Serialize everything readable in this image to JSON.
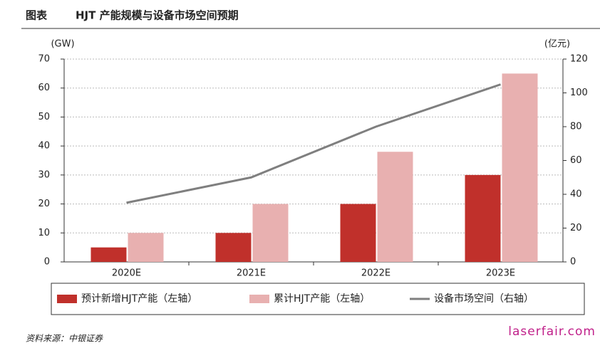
{
  "header": {
    "label": "图表",
    "title": "HJT 产能规模与设备市场空间预期"
  },
  "chart_data": {
    "type": "bar-line",
    "y_axis_label": "(GW)",
    "y2_axis_label": "(亿元)",
    "categories": [
      "2020E",
      "2021E",
      "2022E",
      "2023E"
    ],
    "series": [
      {
        "name": "预计新增HJT产能（左轴）",
        "type": "bar",
        "color": "#c0302b",
        "values": [
          5,
          10,
          20,
          30
        ]
      },
      {
        "name": "累计HJT产能（左轴）",
        "type": "bar",
        "color": "#e8b0b0",
        "values": [
          10,
          20,
          38,
          65
        ]
      },
      {
        "name": "设备市场空间（右轴）",
        "type": "line",
        "axis": "y2",
        "color": "#7f7f7f",
        "values": [
          35,
          50,
          80,
          105
        ]
      }
    ],
    "ylim": [
      0,
      70
    ],
    "yticks": [
      0,
      10,
      20,
      30,
      40,
      50,
      60,
      70
    ],
    "y2lim": [
      0,
      120
    ],
    "y2ticks": [
      0,
      20,
      40,
      60,
      80,
      100,
      120
    ],
    "grid": true
  },
  "footer": {
    "source": "资料来源：中银证券",
    "watermark": "laserfair.com"
  }
}
